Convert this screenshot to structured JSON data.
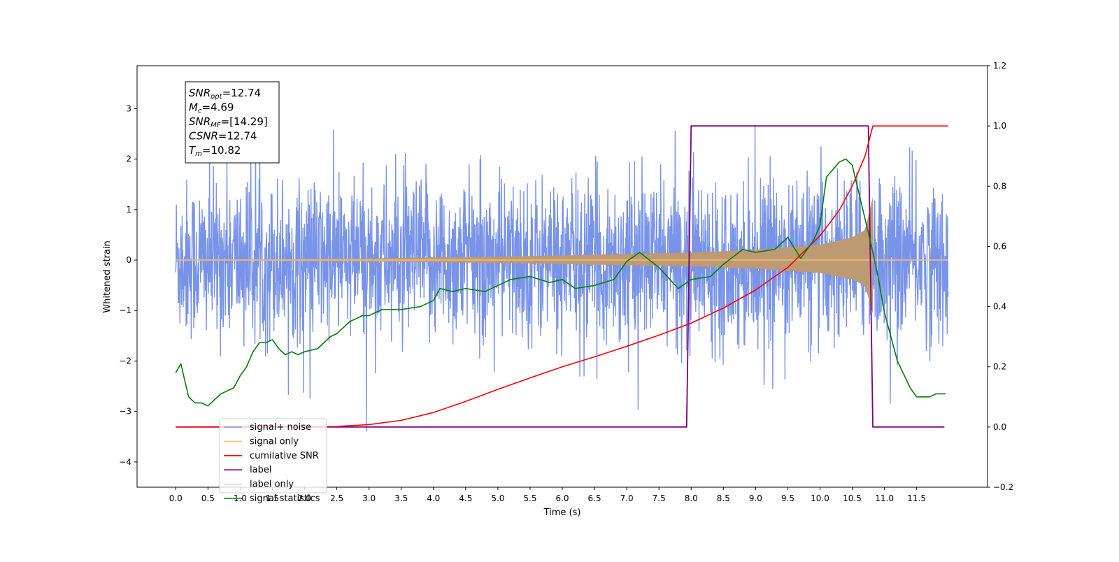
{
  "chart_data": {
    "type": "line",
    "xlabel": "Time (s)",
    "ylabel": "Whitened strain",
    "xlim": [
      -0.6,
      12.6
    ],
    "ylim": [
      -4.5,
      3.85
    ],
    "y2lim": [
      -0.2,
      1.2
    ],
    "grid": false,
    "legend_position": "lower-left",
    "xticks": [
      "0.0",
      "0.5",
      "1.0",
      "1.5",
      "2.0",
      "2.5",
      "3.0",
      "3.5",
      "4.0",
      "4.5",
      "5.0",
      "5.5",
      "6.0",
      "6.5",
      "7.0",
      "7.5",
      "8.0",
      "8.5",
      "9.0",
      "9.5",
      "10.0",
      "10.5",
      "11.0",
      "11.5"
    ],
    "yticks": [
      "3",
      "2",
      "1",
      "0",
      "−1",
      "−2",
      "−3",
      "−4"
    ],
    "y2ticks": [
      "1.2",
      "1.0",
      "0.8",
      "0.6",
      "0.4",
      "0.2",
      "0.0",
      "−0.2"
    ],
    "annotation": [
      {
        "sym": "SNR",
        "sub": "opt",
        "value": "=12.74"
      },
      {
        "sym": "M",
        "sub": "c",
        "value": "=4.69"
      },
      {
        "sym": "SNR",
        "sub": "MF",
        "value": "=[14.29]"
      },
      {
        "sym": "CSNR",
        "sub": "",
        "value": "=12.74"
      },
      {
        "sym": "T",
        "sub": "m",
        "value": "=10.82"
      }
    ],
    "series": [
      {
        "name": "signal+ noise",
        "color": "#7893e8",
        "axis": "left",
        "values_desc": "noise",
        "noise_std": 0.75,
        "x_range": [
          0.0,
          11.99
        ]
      },
      {
        "name": "signal only",
        "color": "#f8c070",
        "axis": "left",
        "envelope": {
          "x": [
            0,
            2,
            4,
            6,
            7,
            8,
            9,
            10,
            10.5,
            10.7,
            10.82
          ],
          "y": [
            0.01,
            0.02,
            0.05,
            0.09,
            0.12,
            0.15,
            0.2,
            0.3,
            0.45,
            0.6,
            1.25
          ]
        }
      },
      {
        "name": "cumilative SNR",
        "color": "#ff0000",
        "axis": "right",
        "x": [
          0,
          2.5,
          3,
          3.5,
          4,
          4.5,
          5,
          5.5,
          6,
          6.5,
          7,
          7.5,
          8,
          8.5,
          9,
          9.5,
          10,
          10.3,
          10.5,
          10.7,
          10.82,
          11.99
        ],
        "y": [
          0,
          0.002,
          0.008,
          0.022,
          0.048,
          0.085,
          0.125,
          0.163,
          0.2,
          0.233,
          0.268,
          0.305,
          0.345,
          0.395,
          0.455,
          0.53,
          0.635,
          0.72,
          0.8,
          0.9,
          1.0,
          1.0
        ]
      },
      {
        "name": "label",
        "color": "#800080",
        "axis": "right",
        "x": [
          0,
          7.93,
          8.0,
          10.75,
          10.82,
          11.93
        ],
        "y": [
          0,
          0,
          1,
          1,
          0,
          0
        ]
      },
      {
        "name": "label only",
        "color": "#d8d8d8",
        "axis": "right",
        "x": [],
        "y": []
      },
      {
        "name": "signal statistics",
        "color": "#008000",
        "axis": "right",
        "x": [
          0,
          0.08,
          0.2,
          0.3,
          0.4,
          0.5,
          0.6,
          0.7,
          0.8,
          0.9,
          1.0,
          1.1,
          1.2,
          1.3,
          1.4,
          1.5,
          1.6,
          1.7,
          1.8,
          1.9,
          2.0,
          2.2,
          2.4,
          2.5,
          2.7,
          2.9,
          3.0,
          3.2,
          3.5,
          3.8,
          4.0,
          4.1,
          4.3,
          4.5,
          4.8,
          5.0,
          5.2,
          5.5,
          5.8,
          6.0,
          6.2,
          6.5,
          6.8,
          7.0,
          7.2,
          7.5,
          7.8,
          8.0,
          8.3,
          8.5,
          8.8,
          9.0,
          9.3,
          9.5,
          9.7,
          9.9,
          10.0,
          10.1,
          10.3,
          10.4,
          10.5,
          10.6,
          10.8,
          10.9,
          11.0,
          11.1,
          11.2,
          11.4,
          11.5,
          11.7,
          11.8,
          11.95
        ],
        "y": [
          0.18,
          0.21,
          0.1,
          0.08,
          0.08,
          0.07,
          0.09,
          0.11,
          0.12,
          0.13,
          0.17,
          0.2,
          0.25,
          0.28,
          0.28,
          0.29,
          0.26,
          0.24,
          0.25,
          0.24,
          0.25,
          0.26,
          0.3,
          0.31,
          0.35,
          0.37,
          0.37,
          0.39,
          0.39,
          0.4,
          0.42,
          0.46,
          0.45,
          0.46,
          0.45,
          0.47,
          0.49,
          0.5,
          0.48,
          0.49,
          0.46,
          0.47,
          0.49,
          0.55,
          0.58,
          0.53,
          0.46,
          0.49,
          0.5,
          0.54,
          0.59,
          0.58,
          0.59,
          0.63,
          0.56,
          0.62,
          0.67,
          0.83,
          0.88,
          0.89,
          0.87,
          0.78,
          0.6,
          0.5,
          0.38,
          0.3,
          0.22,
          0.13,
          0.1,
          0.1,
          0.11,
          0.11
        ]
      }
    ]
  }
}
